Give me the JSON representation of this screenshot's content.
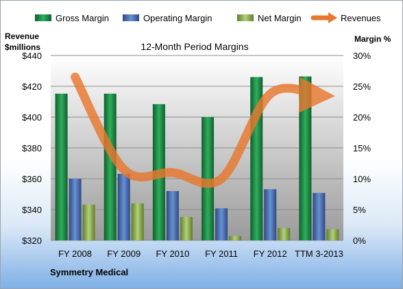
{
  "chart_data": {
    "type": "bar",
    "title": "12-Month Period Margins",
    "left_axis_label": [
      "Revenue",
      "$millions"
    ],
    "right_axis_label": "Margin %",
    "left_ylim": [
      320,
      440
    ],
    "left_ticks": [
      "$320",
      "$340",
      "$360",
      "$380",
      "$400",
      "$420",
      "$440"
    ],
    "right_ylim": [
      0,
      30
    ],
    "right_ticks": [
      "0%",
      "5%",
      "10%",
      "15%",
      "20%",
      "25%",
      "30%"
    ],
    "categories": [
      "FY 2008",
      "FY 2009",
      "FY 2010",
      "FY 2011",
      "FY 2012",
      "TTM 3-2013"
    ],
    "series": [
      {
        "name": "Gross Margin",
        "type": "bar",
        "axis": "right",
        "color": "#1e8a47",
        "values": [
          23.8,
          23.8,
          22.1,
          20.0,
          26.5,
          26.6
        ]
      },
      {
        "name": "Operating Margin",
        "type": "bar",
        "axis": "right",
        "color": "#4a6fb5",
        "values": [
          10.0,
          10.8,
          8.0,
          5.2,
          8.3,
          7.7
        ]
      },
      {
        "name": "Net Margin",
        "type": "bar",
        "axis": "right",
        "color": "#93b653",
        "values": [
          5.8,
          6.0,
          3.8,
          0.7,
          2.0,
          1.8
        ]
      },
      {
        "name": "Revenues",
        "type": "line",
        "axis": "left",
        "color": "#e8782f",
        "values": [
          426,
          366,
          364,
          360,
          415,
          414
        ]
      }
    ],
    "grid": true,
    "legend_position": "top",
    "source": "Symmetry Medical"
  }
}
